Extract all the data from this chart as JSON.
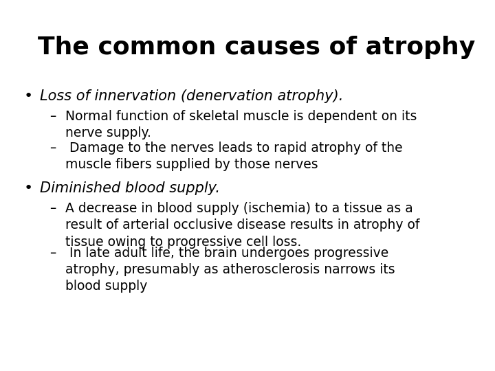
{
  "title": "The common causes of atrophy",
  "background_color": "#ffffff",
  "text_color": "#000000",
  "title_fontsize": 26,
  "bullet_fontsize": 15,
  "sub_fontsize": 13.5,
  "content": [
    {
      "type": "bullet",
      "text": "Loss of innervation (denervation atrophy).",
      "italic": true,
      "sub_items": [
        "Normal function of skeletal muscle is dependent on its\nnerve supply.",
        " Damage to the nerves leads to rapid atrophy of the\nmuscle fibers supplied by those nerves"
      ]
    },
    {
      "type": "bullet",
      "text": "Diminished blood supply.",
      "italic": true,
      "sub_items": [
        "A decrease in blood supply (ischemia) to a tissue as a\nresult of arterial occlusive disease results in atrophy of\ntissue owing to progressive cell loss.",
        " In late adult life, the brain undergoes progressive\natrophy, presumably as atherosclerosis narrows its\nblood supply"
      ]
    }
  ]
}
